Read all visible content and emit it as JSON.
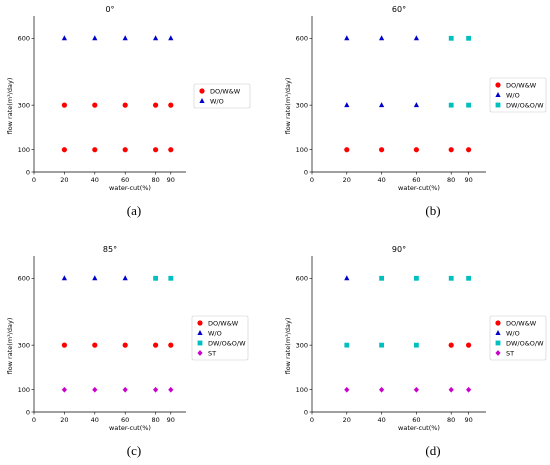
{
  "chart_data": [
    {
      "type": "scatter",
      "title": "0°",
      "caption": "(a)",
      "xlabel": "water-cut(%)",
      "ylabel": "flow rate(m³/day)",
      "xlim": [
        0,
        100
      ],
      "ylim": [
        0,
        700
      ],
      "xticks": [
        0,
        20,
        40,
        60,
        80,
        90
      ],
      "yticks": [
        0,
        100,
        300,
        600
      ],
      "legend_position": "right",
      "series": [
        {
          "name": "DO/W&W",
          "marker": "circle",
          "color": "#ff0000",
          "points": [
            [
              20,
              100
            ],
            [
              40,
              100
            ],
            [
              60,
              100
            ],
            [
              80,
              100
            ],
            [
              90,
              100
            ],
            [
              20,
              300
            ],
            [
              40,
              300
            ],
            [
              60,
              300
            ],
            [
              80,
              300
            ],
            [
              90,
              300
            ]
          ]
        },
        {
          "name": "W/O",
          "marker": "triangle",
          "color": "#0000cc",
          "points": [
            [
              20,
              600
            ],
            [
              40,
              600
            ],
            [
              60,
              600
            ],
            [
              80,
              600
            ],
            [
              90,
              600
            ]
          ]
        }
      ]
    },
    {
      "type": "scatter",
      "title": "60°",
      "caption": "(b)",
      "xlabel": "water-cut(%)",
      "ylabel": "flow rate(m³/day)",
      "xlim": [
        0,
        100
      ],
      "ylim": [
        0,
        700
      ],
      "xticks": [
        0,
        20,
        40,
        60,
        80,
        90
      ],
      "yticks": [
        0,
        100,
        300,
        600
      ],
      "legend_position": "right",
      "series": [
        {
          "name": "DO/W&W",
          "marker": "circle",
          "color": "#ff0000",
          "points": [
            [
              20,
              100
            ],
            [
              40,
              100
            ],
            [
              60,
              100
            ],
            [
              80,
              100
            ],
            [
              90,
              100
            ]
          ]
        },
        {
          "name": "W/O",
          "marker": "triangle",
          "color": "#0000cc",
          "points": [
            [
              20,
              300
            ],
            [
              40,
              300
            ],
            [
              60,
              300
            ],
            [
              20,
              600
            ],
            [
              40,
              600
            ],
            [
              60,
              600
            ]
          ]
        },
        {
          "name": "DW/O&O/W",
          "marker": "square",
          "color": "#00bfbf",
          "points": [
            [
              80,
              300
            ],
            [
              90,
              300
            ],
            [
              80,
              600
            ],
            [
              90,
              600
            ]
          ]
        }
      ]
    },
    {
      "type": "scatter",
      "title": "85°",
      "caption": "(c)",
      "xlabel": "water-cut(%)",
      "ylabel": "flow rate(m³/day)",
      "xlim": [
        0,
        100
      ],
      "ylim": [
        0,
        700
      ],
      "xticks": [
        0,
        20,
        40,
        60,
        80,
        90
      ],
      "yticks": [
        0,
        100,
        300,
        600
      ],
      "legend_position": "right",
      "series": [
        {
          "name": "DO/W&W",
          "marker": "circle",
          "color": "#ff0000",
          "points": [
            [
              20,
              300
            ],
            [
              40,
              300
            ],
            [
              60,
              300
            ],
            [
              80,
              300
            ],
            [
              90,
              300
            ]
          ]
        },
        {
          "name": "W/O",
          "marker": "triangle",
          "color": "#0000cc",
          "points": [
            [
              20,
              600
            ],
            [
              40,
              600
            ],
            [
              60,
              600
            ]
          ]
        },
        {
          "name": "DW/O&O/W",
          "marker": "square",
          "color": "#00bfbf",
          "points": [
            [
              80,
              600
            ],
            [
              90,
              600
            ]
          ]
        },
        {
          "name": "ST",
          "marker": "diamond",
          "color": "#cc00cc",
          "points": [
            [
              20,
              100
            ],
            [
              40,
              100
            ],
            [
              60,
              100
            ],
            [
              80,
              100
            ],
            [
              90,
              100
            ]
          ]
        }
      ]
    },
    {
      "type": "scatter",
      "title": "90°",
      "caption": "(d)",
      "xlabel": "water-cut(%)",
      "ylabel": "flow rate(m³/day)",
      "xlim": [
        0,
        100
      ],
      "ylim": [
        0,
        700
      ],
      "xticks": [
        0,
        20,
        40,
        60,
        80,
        90
      ],
      "yticks": [
        0,
        100,
        300,
        600
      ],
      "legend_position": "right",
      "series": [
        {
          "name": "DO/W&W",
          "marker": "circle",
          "color": "#ff0000",
          "points": [
            [
              80,
              300
            ],
            [
              90,
              300
            ]
          ]
        },
        {
          "name": "W/O",
          "marker": "triangle",
          "color": "#0000cc",
          "points": [
            [
              20,
              600
            ]
          ]
        },
        {
          "name": "DW/O&O/W",
          "marker": "square",
          "color": "#00bfbf",
          "points": [
            [
              20,
              300
            ],
            [
              40,
              300
            ],
            [
              60,
              300
            ],
            [
              40,
              600
            ],
            [
              60,
              600
            ],
            [
              80,
              600
            ],
            [
              90,
              600
            ]
          ]
        },
        {
          "name": "ST",
          "marker": "diamond",
          "color": "#cc00cc",
          "points": [
            [
              20,
              100
            ],
            [
              40,
              100
            ],
            [
              60,
              100
            ],
            [
              80,
              100
            ],
            [
              90,
              100
            ]
          ]
        }
      ]
    }
  ]
}
